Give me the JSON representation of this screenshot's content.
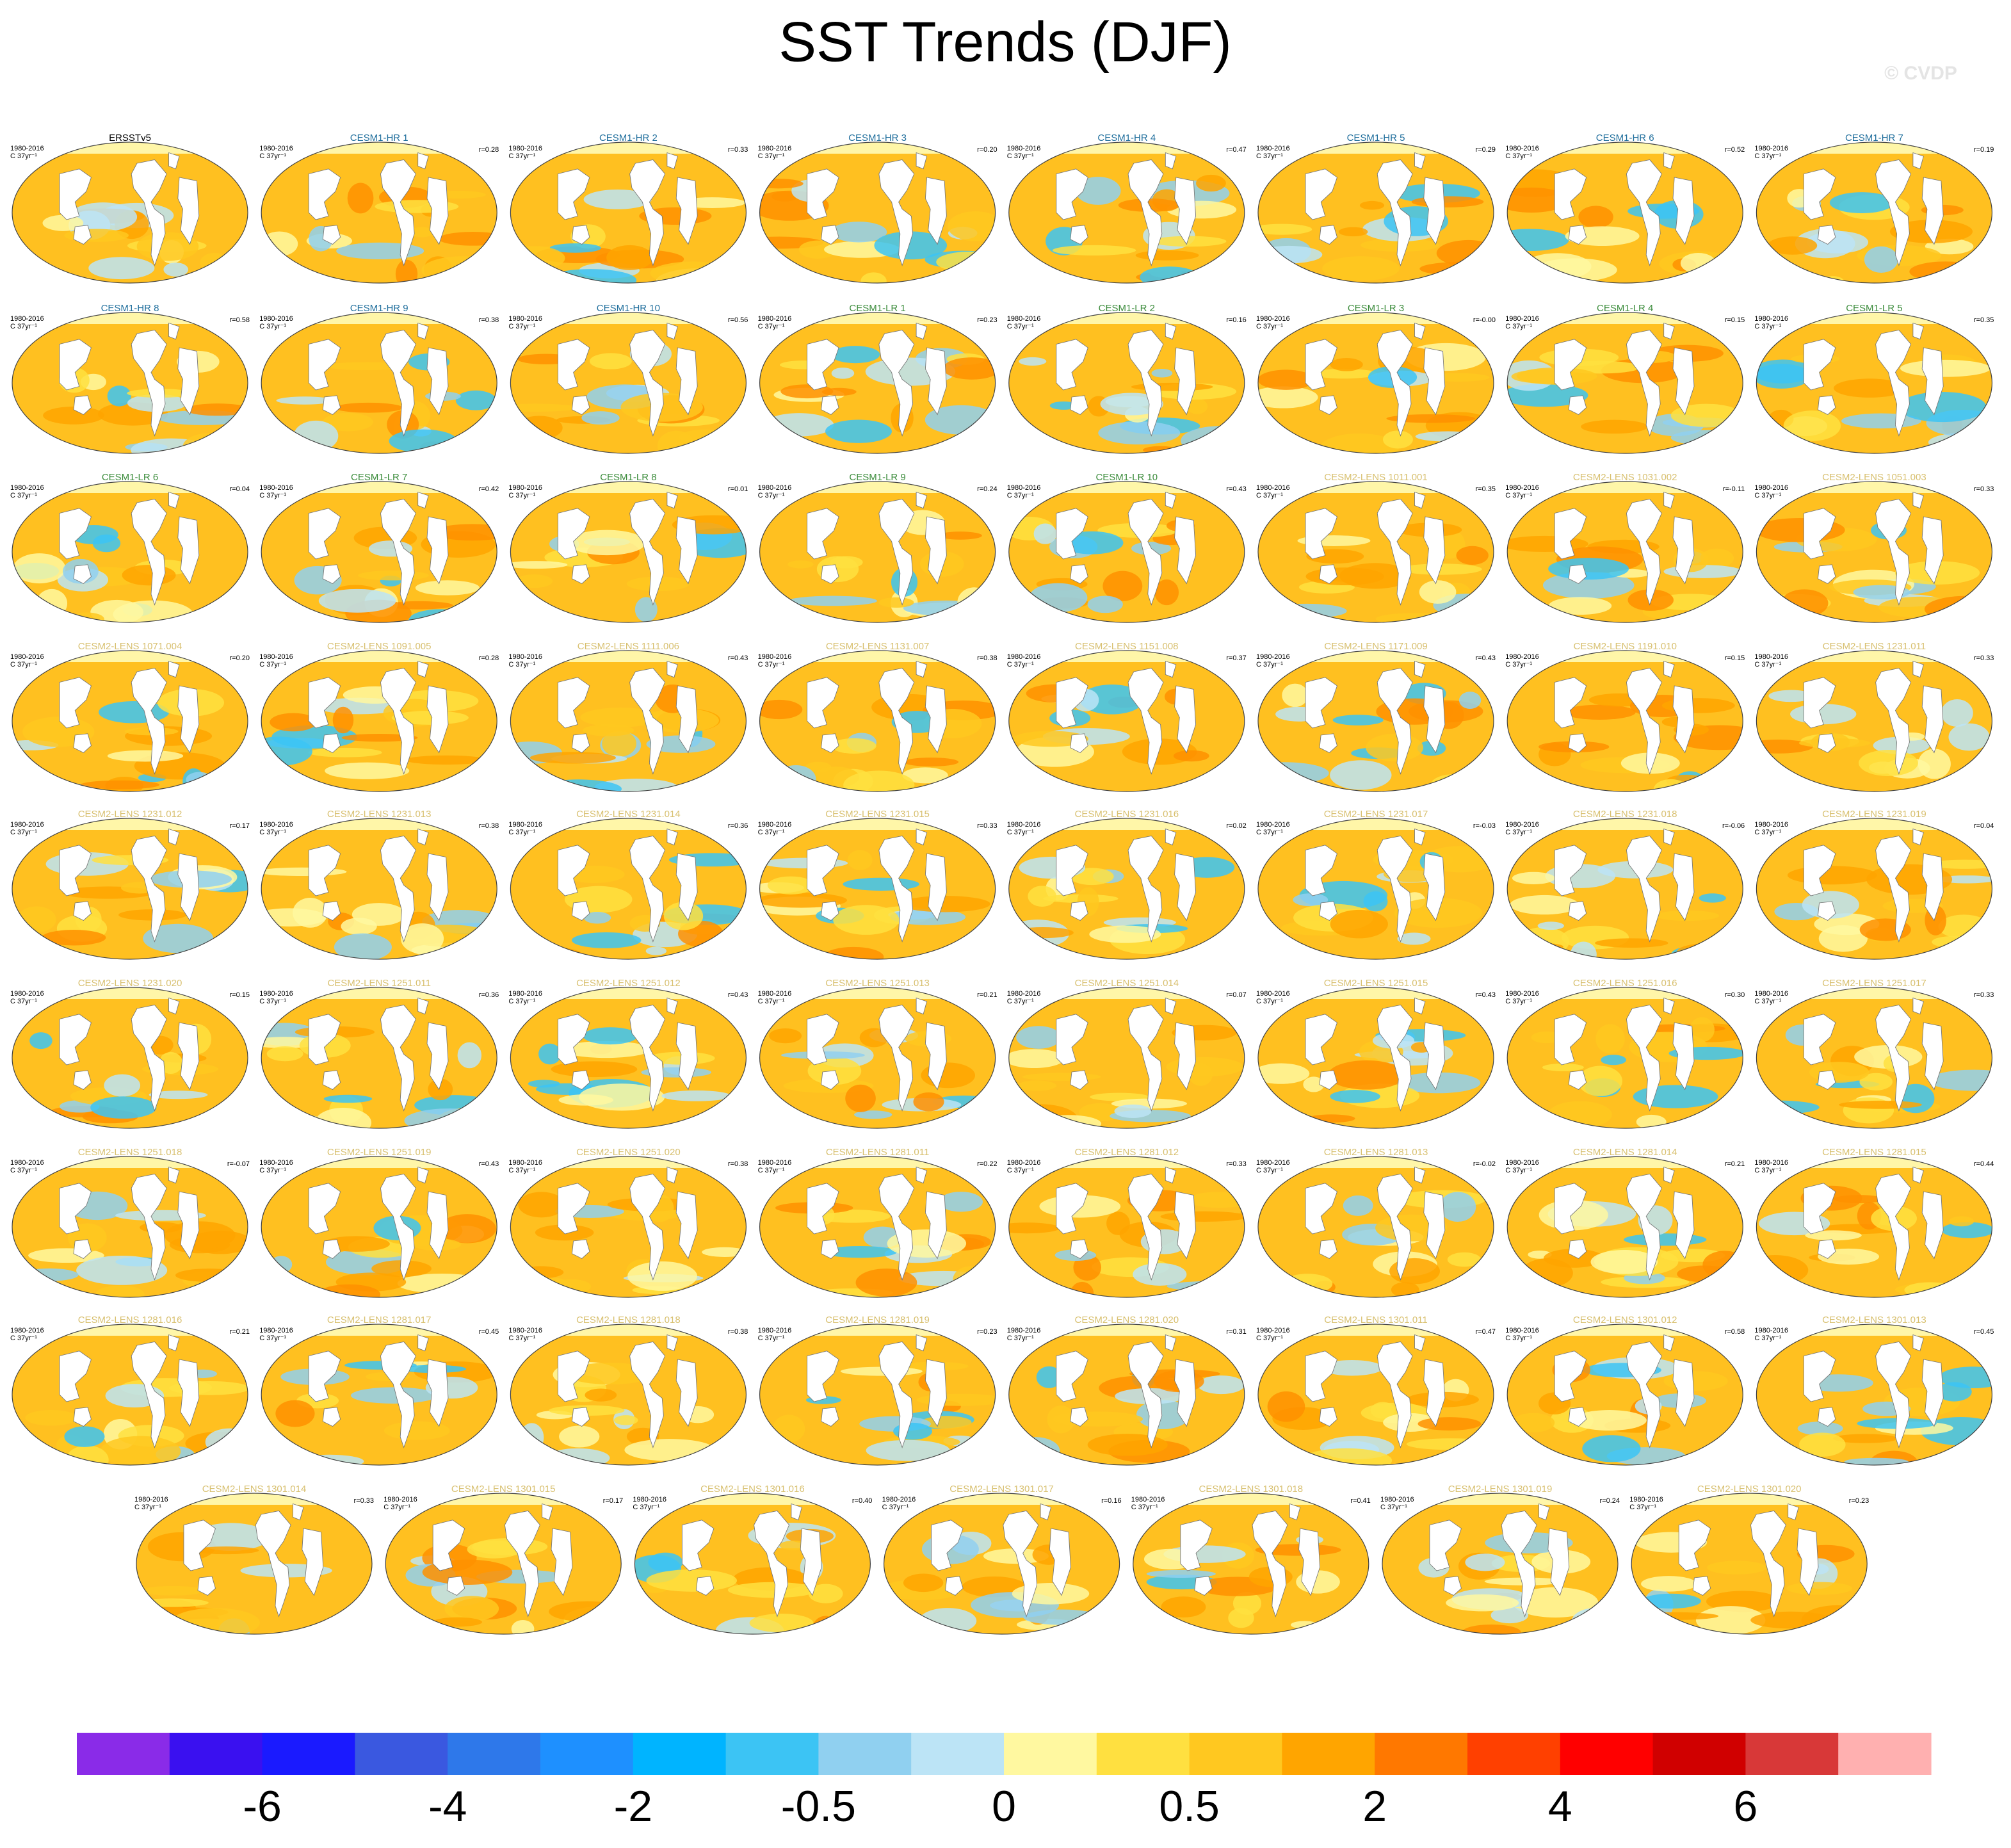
{
  "title": "SST Trends (DJF)",
  "watermark": "© CVDP",
  "panels": [
    {
      "title": "ERSSTv5",
      "period": "1980-2016",
      "units": "C 37yr⁻¹",
      "r": null,
      "color": "#000000"
    },
    {
      "title": "CESM1-HR 1",
      "period": "1980-2016",
      "units": "C 37yr⁻¹",
      "r": "r=0.28",
      "color": "#1f6e9c"
    },
    {
      "title": "CESM1-HR 2",
      "period": "1980-2016",
      "units": "C 37yr⁻¹",
      "r": "r=0.33",
      "color": "#1f6e9c"
    },
    {
      "title": "CESM1-HR 3",
      "period": "1980-2016",
      "units": "C 37yr⁻¹",
      "r": "r=0.20",
      "color": "#1f6e9c"
    },
    {
      "title": "CESM1-HR 4",
      "period": "1980-2016",
      "units": "C 37yr⁻¹",
      "r": "r=0.47",
      "color": "#1f6e9c"
    },
    {
      "title": "CESM1-HR 5",
      "period": "1980-2016",
      "units": "C 37yr⁻¹",
      "r": "r=0.29",
      "color": "#1f6e9c"
    },
    {
      "title": "CESM1-HR 6",
      "period": "1980-2016",
      "units": "C 37yr⁻¹",
      "r": "r=0.52",
      "color": "#1f6e9c"
    },
    {
      "title": "CESM1-HR 7",
      "period": "1980-2016",
      "units": "C 37yr⁻¹",
      "r": "r=0.19",
      "color": "#1f6e9c"
    },
    {
      "title": "CESM1-HR 8",
      "period": "1980-2016",
      "units": "C 37yr⁻¹",
      "r": "r=0.58",
      "color": "#1f6e9c"
    },
    {
      "title": "CESM1-HR 9",
      "period": "1980-2016",
      "units": "C 37yr⁻¹",
      "r": "r=0.38",
      "color": "#1f6e9c"
    },
    {
      "title": "CESM1-HR 10",
      "period": "1980-2016",
      "units": "C 37yr⁻¹",
      "r": "r=0.56",
      "color": "#1f6e9c"
    },
    {
      "title": "CESM1-LR 1",
      "period": "1980-2016",
      "units": "C 37yr⁻¹",
      "r": "r=0.23",
      "color": "#3c8c3c"
    },
    {
      "title": "CESM1-LR 2",
      "period": "1980-2016",
      "units": "C 37yr⁻¹",
      "r": "r=0.16",
      "color": "#3c8c3c"
    },
    {
      "title": "CESM1-LR 3",
      "period": "1980-2016",
      "units": "C 37yr⁻¹",
      "r": "r=-0.00",
      "color": "#3c8c3c"
    },
    {
      "title": "CESM1-LR 4",
      "period": "1980-2016",
      "units": "C 37yr⁻¹",
      "r": "r=0.15",
      "color": "#3c8c3c"
    },
    {
      "title": "CESM1-LR 5",
      "period": "1980-2016",
      "units": "C 37yr⁻¹",
      "r": "r=0.35",
      "color": "#3c8c3c"
    },
    {
      "title": "CESM1-LR 6",
      "period": "1980-2016",
      "units": "C 37yr⁻¹",
      "r": "r=0.04",
      "color": "#3c8c3c"
    },
    {
      "title": "CESM1-LR 7",
      "period": "1980-2016",
      "units": "C 37yr⁻¹",
      "r": "r=0.42",
      "color": "#3c8c3c"
    },
    {
      "title": "CESM1-LR 8",
      "period": "1980-2016",
      "units": "C 37yr⁻¹",
      "r": "r=0.01",
      "color": "#3c8c3c"
    },
    {
      "title": "CESM1-LR 9",
      "period": "1980-2016",
      "units": "C 37yr⁻¹",
      "r": "r=0.24",
      "color": "#3c8c3c"
    },
    {
      "title": "CESM1-LR 10",
      "period": "1980-2016",
      "units": "C 37yr⁻¹",
      "r": "r=0.43",
      "color": "#3c8c3c"
    },
    {
      "title": "CESM2-LENS 1011.001",
      "period": "1980-2016",
      "units": "C 37yr⁻¹",
      "r": "r=0.35",
      "color": "#d8c070"
    },
    {
      "title": "CESM2-LENS 1031.002",
      "period": "1980-2016",
      "units": "C 37yr⁻¹",
      "r": "r=-0.11",
      "color": "#d8c070"
    },
    {
      "title": "CESM2-LENS 1051.003",
      "period": "1980-2016",
      "units": "C 37yr⁻¹",
      "r": "r=0.33",
      "color": "#d8c070"
    },
    {
      "title": "CESM2-LENS 1071.004",
      "period": "1980-2016",
      "units": "C 37yr⁻¹",
      "r": "r=0.20",
      "color": "#d8c070"
    },
    {
      "title": "CESM2-LENS 1091.005",
      "period": "1980-2016",
      "units": "C 37yr⁻¹",
      "r": "r=0.28",
      "color": "#d8c070"
    },
    {
      "title": "CESM2-LENS 1111.006",
      "period": "1980-2016",
      "units": "C 37yr⁻¹",
      "r": "r=0.43",
      "color": "#d8c070"
    },
    {
      "title": "CESM2-LENS 1131.007",
      "period": "1980-2016",
      "units": "C 37yr⁻¹",
      "r": "r=0.38",
      "color": "#d8c070"
    },
    {
      "title": "CESM2-LENS 1151.008",
      "period": "1980-2016",
      "units": "C 37yr⁻¹",
      "r": "r=0.37",
      "color": "#d8c070"
    },
    {
      "title": "CESM2-LENS 1171.009",
      "period": "1980-2016",
      "units": "C 37yr⁻¹",
      "r": "r=0.43",
      "color": "#d8c070"
    },
    {
      "title": "CESM2-LENS 1191.010",
      "period": "1980-2016",
      "units": "C 37yr⁻¹",
      "r": "r=0.15",
      "color": "#d8c070"
    },
    {
      "title": "CESM2-LENS 1231.011",
      "period": "1980-2016",
      "units": "C 37yr⁻¹",
      "r": "r=0.33",
      "color": "#d8c070"
    },
    {
      "title": "CESM2-LENS 1231.012",
      "period": "1980-2016",
      "units": "C 37yr⁻¹",
      "r": "r=0.17",
      "color": "#d8c070"
    },
    {
      "title": "CESM2-LENS 1231.013",
      "period": "1980-2016",
      "units": "C 37yr⁻¹",
      "r": "r=0.38",
      "color": "#d8c070"
    },
    {
      "title": "CESM2-LENS 1231.014",
      "period": "1980-2016",
      "units": "C 37yr⁻¹",
      "r": "r=0.36",
      "color": "#d8c070"
    },
    {
      "title": "CESM2-LENS 1231.015",
      "period": "1980-2016",
      "units": "C 37yr⁻¹",
      "r": "r=0.33",
      "color": "#d8c070"
    },
    {
      "title": "CESM2-LENS 1231.016",
      "period": "1980-2016",
      "units": "C 37yr⁻¹",
      "r": "r=0.02",
      "color": "#d8c070"
    },
    {
      "title": "CESM2-LENS 1231.017",
      "period": "1980-2016",
      "units": "C 37yr⁻¹",
      "r": "r=-0.03",
      "color": "#d8c070"
    },
    {
      "title": "CESM2-LENS 1231.018",
      "period": "1980-2016",
      "units": "C 37yr⁻¹",
      "r": "r=-0.06",
      "color": "#d8c070"
    },
    {
      "title": "CESM2-LENS 1231.019",
      "period": "1980-2016",
      "units": "C 37yr⁻¹",
      "r": "r=0.04",
      "color": "#d8c070"
    },
    {
      "title": "CESM2-LENS 1231.020",
      "period": "1980-2016",
      "units": "C 37yr⁻¹",
      "r": "r=0.15",
      "color": "#d8c070"
    },
    {
      "title": "CESM2-LENS 1251.011",
      "period": "1980-2016",
      "units": "C 37yr⁻¹",
      "r": "r=0.36",
      "color": "#d8c070"
    },
    {
      "title": "CESM2-LENS 1251.012",
      "period": "1980-2016",
      "units": "C 37yr⁻¹",
      "r": "r=0.43",
      "color": "#d8c070"
    },
    {
      "title": "CESM2-LENS 1251.013",
      "period": "1980-2016",
      "units": "C 37yr⁻¹",
      "r": "r=0.21",
      "color": "#d8c070"
    },
    {
      "title": "CESM2-LENS 1251.014",
      "period": "1980-2016",
      "units": "C 37yr⁻¹",
      "r": "r=0.07",
      "color": "#d8c070"
    },
    {
      "title": "CESM2-LENS 1251.015",
      "period": "1980-2016",
      "units": "C 37yr⁻¹",
      "r": "r=0.43",
      "color": "#d8c070"
    },
    {
      "title": "CESM2-LENS 1251.016",
      "period": "1980-2016",
      "units": "C 37yr⁻¹",
      "r": "r=0.30",
      "color": "#d8c070"
    },
    {
      "title": "CESM2-LENS 1251.017",
      "period": "1980-2016",
      "units": "C 37yr⁻¹",
      "r": "r=0.33",
      "color": "#d8c070"
    },
    {
      "title": "CESM2-LENS 1251.018",
      "period": "1980-2016",
      "units": "C 37yr⁻¹",
      "r": "r=-0.07",
      "color": "#d8c070"
    },
    {
      "title": "CESM2-LENS 1251.019",
      "period": "1980-2016",
      "units": "C 37yr⁻¹",
      "r": "r=0.43",
      "color": "#d8c070"
    },
    {
      "title": "CESM2-LENS 1251.020",
      "period": "1980-2016",
      "units": "C 37yr⁻¹",
      "r": "r=0.38",
      "color": "#d8c070"
    },
    {
      "title": "CESM2-LENS 1281.011",
      "period": "1980-2016",
      "units": "C 37yr⁻¹",
      "r": "r=0.22",
      "color": "#d8c070"
    },
    {
      "title": "CESM2-LENS 1281.012",
      "period": "1980-2016",
      "units": "C 37yr⁻¹",
      "r": "r=0.33",
      "color": "#d8c070"
    },
    {
      "title": "CESM2-LENS 1281.013",
      "period": "1980-2016",
      "units": "C 37yr⁻¹",
      "r": "r=-0.02",
      "color": "#d8c070"
    },
    {
      "title": "CESM2-LENS 1281.014",
      "period": "1980-2016",
      "units": "C 37yr⁻¹",
      "r": "r=0.21",
      "color": "#d8c070"
    },
    {
      "title": "CESM2-LENS 1281.015",
      "period": "1980-2016",
      "units": "C 37yr⁻¹",
      "r": "r=0.44",
      "color": "#d8c070"
    },
    {
      "title": "CESM2-LENS 1281.016",
      "period": "1980-2016",
      "units": "C 37yr⁻¹",
      "r": "r=0.21",
      "color": "#d8c070"
    },
    {
      "title": "CESM2-LENS 1281.017",
      "period": "1980-2016",
      "units": "C 37yr⁻¹",
      "r": "r=0.45",
      "color": "#d8c070"
    },
    {
      "title": "CESM2-LENS 1281.018",
      "period": "1980-2016",
      "units": "C 37yr⁻¹",
      "r": "r=0.38",
      "color": "#d8c070"
    },
    {
      "title": "CESM2-LENS 1281.019",
      "period": "1980-2016",
      "units": "C 37yr⁻¹",
      "r": "r=0.23",
      "color": "#d8c070"
    },
    {
      "title": "CESM2-LENS 1281.020",
      "period": "1980-2016",
      "units": "C 37yr⁻¹",
      "r": "r=0.31",
      "color": "#d8c070"
    },
    {
      "title": "CESM2-LENS 1301.011",
      "period": "1980-2016",
      "units": "C 37yr⁻¹",
      "r": "r=0.47",
      "color": "#d8c070"
    },
    {
      "title": "CESM2-LENS 1301.012",
      "period": "1980-2016",
      "units": "C 37yr⁻¹",
      "r": "r=0.58",
      "color": "#d8c070"
    },
    {
      "title": "CESM2-LENS 1301.013",
      "period": "1980-2016",
      "units": "C 37yr⁻¹",
      "r": "r=0.45",
      "color": "#d8c070"
    },
    {
      "title": "CESM2-LENS 1301.014",
      "period": "1980-2016",
      "units": "C 37yr⁻¹",
      "r": "r=0.33",
      "color": "#d8c070"
    },
    {
      "title": "CESM2-LENS 1301.015",
      "period": "1980-2016",
      "units": "C 37yr⁻¹",
      "r": "r=0.17",
      "color": "#d8c070"
    },
    {
      "title": "CESM2-LENS 1301.016",
      "period": "1980-2016",
      "units": "C 37yr⁻¹",
      "r": "r=0.40",
      "color": "#d8c070"
    },
    {
      "title": "CESM2-LENS 1301.017",
      "period": "1980-2016",
      "units": "C 37yr⁻¹",
      "r": "r=0.16",
      "color": "#d8c070"
    },
    {
      "title": "CESM2-LENS 1301.018",
      "period": "1980-2016",
      "units": "C 37yr⁻¹",
      "r": "r=0.41",
      "color": "#d8c070"
    },
    {
      "title": "CESM2-LENS 1301.019",
      "period": "1980-2016",
      "units": "C 37yr⁻¹",
      "r": "r=0.24",
      "color": "#d8c070"
    },
    {
      "title": "CESM2-LENS 1301.020",
      "period": "1980-2016",
      "units": "C 37yr⁻¹",
      "r": "r=0.23",
      "color": "#d8c070"
    }
  ],
  "colorbar": {
    "colors": [
      "#8a2be8",
      "#3a10f0",
      "#1a1aff",
      "#3a58e0",
      "#2e78ea",
      "#1e90ff",
      "#00b4ff",
      "#3cc4f4",
      "#90d0f0",
      "#bce4f6",
      "#fff8a0",
      "#ffe040",
      "#ffc820",
      "#ffa500",
      "#ff7800",
      "#ff4000",
      "#ff0000",
      "#d00000",
      "#d83838",
      "#ffb0b0"
    ],
    "labels": [
      "-6",
      "-4",
      "-2",
      "-0.5",
      "0",
      "0.5",
      "2",
      "4",
      "6"
    ]
  }
}
